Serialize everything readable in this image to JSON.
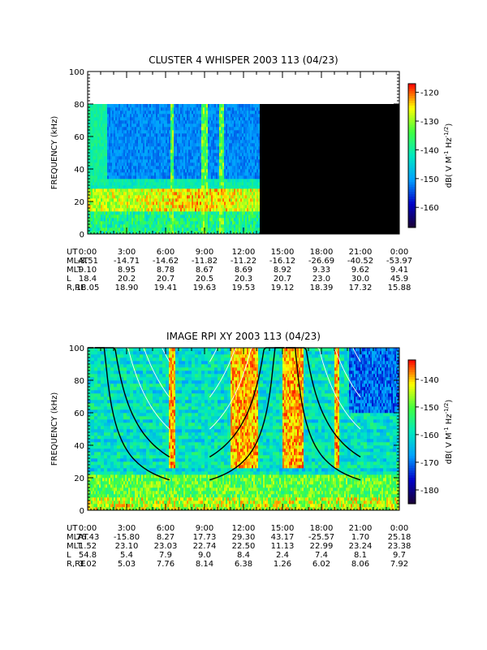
{
  "chart_data": [
    {
      "type": "heatmap",
      "title": "CLUSTER 4 WHISPER 2003 113 (04/23)",
      "ylabel": "FREQUENCY (kHz)",
      "ylim": [
        0,
        100
      ],
      "yticks": [
        "0",
        "20",
        "40",
        "60",
        "80",
        "100"
      ],
      "colorbar": {
        "label_parts": [
          "dB( V M",
          "-1",
          " Hz",
          "-1/2",
          ")"
        ],
        "range": [
          -167,
          -117
        ],
        "ticks": [
          "-120",
          "-130",
          "-140",
          "-150",
          "-160"
        ],
        "colors": [
          "#1a0030",
          "#0000c8",
          "#00a0ff",
          "#00e8c0",
          "#40ff40",
          "#ffff00",
          "#ff0000"
        ]
      },
      "data_coverage_hours": [
        0,
        13.2
      ],
      "data_ceiling_khz": 80,
      "no_data_color": "#000000",
      "features": [
        "intense emission band near 15-28 kHz across the covered interval",
        "broadband spikes near 6:30, 9:00 and 10:30",
        "enhanced emission above 40 kHz near 0:30-1:30"
      ],
      "ephemeris": {
        "labels": [
          "UT",
          "MLAT",
          "MLT",
          "L",
          "R,RE"
        ],
        "columns": [
          [
            "0:00",
            "-8.51",
            "9.10",
            "18.4",
            "18.05"
          ],
          [
            "3:00",
            "-14.71",
            "8.95",
            "20.2",
            "18.90"
          ],
          [
            "6:00",
            "-14.62",
            "8.78",
            "20.7",
            "19.41"
          ],
          [
            "9:00",
            "-11.82",
            "8.67",
            "20.5",
            "19.63"
          ],
          [
            "12:00",
            "-11.22",
            "8.69",
            "20.3",
            "19.53"
          ],
          [
            "15:00",
            "-16.12",
            "8.92",
            "20.7",
            "19.12"
          ],
          [
            "18:00",
            "-26.69",
            "9.33",
            "23.0",
            "18.39"
          ],
          [
            "21:00",
            "-40.52",
            "9.62",
            "30.0",
            "17.32"
          ],
          [
            "0:00",
            "-53.97",
            "9.41",
            "45.9",
            "15.88"
          ]
        ]
      }
    },
    {
      "type": "heatmap",
      "title": "IMAGE RPI XY 2003 113 (04/23)",
      "ylabel": "FREQUENCY (kHz)",
      "ylim": [
        0,
        100
      ],
      "yticks": [
        "0",
        "20",
        "40",
        "60",
        "80",
        "100"
      ],
      "colorbar": {
        "label_parts": [
          "dB( V M",
          "-1",
          " Hz",
          "-1/2",
          ")"
        ],
        "range": [
          -185,
          -133
        ],
        "ticks": [
          "-140",
          "-150",
          "-160",
          "-170",
          "-180"
        ],
        "colors": [
          "#1a0030",
          "#0000c8",
          "#00a0ff",
          "#00e8c0",
          "#40ff40",
          "#ffff00",
          "#ff0000"
        ]
      },
      "perigee_hours": [
        0.5,
        15.2
      ],
      "features": [
        "black and white gyrofrequency-type curves converging near perigee at about 0:30 and 15:10",
        "intense broadband emission near 6:30, 11:30-12:30 and 15:30-16:30"
      ],
      "ephemeris": {
        "labels": [
          "UT",
          "MLAT",
          "MLT",
          "L",
          "R,RE"
        ],
        "columns": [
          [
            "0:00",
            "76.43",
            "1.52",
            "54.8",
            "3.02"
          ],
          [
            "3:00",
            "-15.80",
            "23.10",
            "5.4",
            "5.03"
          ],
          [
            "6:00",
            "8.27",
            "23.03",
            "7.9",
            "7.76"
          ],
          [
            "9:00",
            "17.73",
            "22.74",
            "9.0",
            "8.14"
          ],
          [
            "12:00",
            "29.30",
            "22.50",
            "8.4",
            "6.38"
          ],
          [
            "15:00",
            "43.17",
            "11.13",
            "2.4",
            "1.26"
          ],
          [
            "18:00",
            "-25.57",
            "22.99",
            "7.4",
            "6.02"
          ],
          [
            "21:00",
            "1.70",
            "23.24",
            "8.1",
            "8.06"
          ],
          [
            "0:00",
            "25.18",
            "23.38",
            "9.7",
            "7.92"
          ]
        ]
      }
    }
  ]
}
